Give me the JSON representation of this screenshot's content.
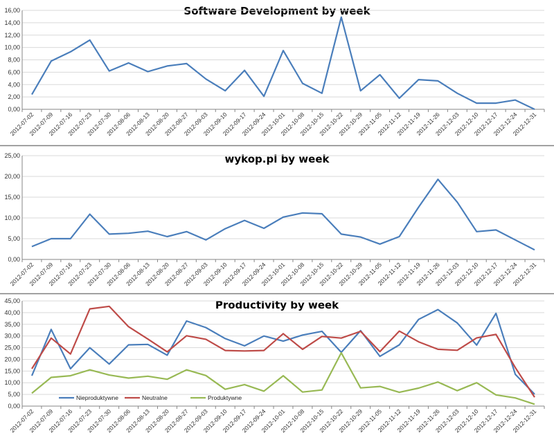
{
  "colors": {
    "blue": "#4a7ebb",
    "red": "#be4b48",
    "green": "#98b954",
    "grid": "#d9d9d9",
    "axis": "#868686",
    "separator": "#808080"
  },
  "chart_data": [
    {
      "type": "line",
      "title": "Software Development by week",
      "x": [
        "2012-07-02",
        "2012-07-09",
        "2012-07-16",
        "2012-07-23",
        "2012-07-30",
        "2012-08-06",
        "2012-08-13",
        "2012-08-20",
        "2012-08-27",
        "2012-09-03",
        "2012-09-10",
        "2012-09-17",
        "2012-09-24",
        "2012-10-01",
        "2012-10-08",
        "2012-10-15",
        "2012-10-22",
        "2012-10-29",
        "2012-11-05",
        "2012-11-12",
        "2012-11-19",
        "2012-11-26",
        "2012-12-03",
        "2012-12-10",
        "2012-12-17",
        "2012-12-24",
        "2012-12-31"
      ],
      "yticks": [
        "0,00",
        "2,00",
        "4,00",
        "6,00",
        "8,00",
        "10,00",
        "12,00",
        "14,00",
        "16,00"
      ],
      "ylim": [
        0,
        16
      ],
      "grid": true,
      "series": [
        {
          "color": "#4a7ebb",
          "values": [
            2.4,
            7.8,
            9.3,
            11.2,
            6.2,
            7.5,
            6.1,
            7.0,
            7.4,
            4.9,
            3.0,
            6.3,
            2.1,
            9.5,
            4.2,
            2.6,
            14.9,
            3.0,
            5.6,
            1.8,
            4.8,
            4.6,
            2.6,
            1.0,
            1.0,
            1.5,
            0.0
          ]
        }
      ]
    },
    {
      "type": "line",
      "title": "wykop.pl by week",
      "x": [
        "2012-07-02",
        "2012-07-09",
        "2012-07-16",
        "2012-07-23",
        "2012-07-30",
        "2012-08-06",
        "2012-08-13",
        "2012-08-20",
        "2012-08-27",
        "2012-09-03",
        "2012-09-10",
        "2012-09-17",
        "2012-09-24",
        "2012-10-01",
        "2012-10-08",
        "2012-10-15",
        "2012-10-22",
        "2012-10-29",
        "2012-11-05",
        "2012-11-12",
        "2012-11-19",
        "2012-11-26",
        "2012-12-03",
        "2012-12-10",
        "2012-12-17",
        "2012-12-24",
        "2012-12-31"
      ],
      "yticks": [
        "0,00",
        "5,00",
        "10,00",
        "15,00",
        "20,00",
        "25,00"
      ],
      "ylim": [
        0,
        25
      ],
      "grid": true,
      "series": [
        {
          "color": "#4a7ebb",
          "values": [
            3.1,
            5.0,
            5.0,
            10.9,
            6.1,
            6.3,
            6.8,
            5.5,
            6.7,
            4.7,
            7.4,
            9.4,
            7.5,
            10.2,
            11.2,
            11.0,
            6.1,
            5.4,
            3.7,
            5.5,
            12.6,
            19.3,
            13.8,
            6.7,
            7.1,
            4.7,
            2.3
          ]
        }
      ]
    },
    {
      "type": "line",
      "title": "Productivity by week",
      "x": [
        "2012-07-02",
        "2012-07-09",
        "2012-07-16",
        "2012-07-23",
        "2012-07-30",
        "2012-08-06",
        "2012-08-13",
        "2012-08-20",
        "2012-08-27",
        "2012-09-03",
        "2012-09-10",
        "2012-09-17",
        "2012-09-24",
        "2012-10-01",
        "2012-10-08",
        "2012-10-15",
        "2012-10-22",
        "2012-10-29",
        "2012-11-05",
        "2012-11-12",
        "2012-11-19",
        "2012-11-26",
        "2012-12-03",
        "2012-12-10",
        "2012-12-17",
        "2012-12-24",
        "2012-12-31"
      ],
      "yticks": [
        "0,00",
        "5,00",
        "10,00",
        "15,00",
        "20,00",
        "25,00",
        "30,00",
        "35,00",
        "40,00",
        "45,00"
      ],
      "ylim": [
        0,
        45
      ],
      "grid": true,
      "legend": "bottom-left",
      "series": [
        {
          "name": "Nieproduktywne",
          "color": "#4a7ebb",
          "values": [
            13.0,
            32.8,
            16.0,
            25.0,
            18.0,
            26.2,
            26.4,
            21.8,
            36.4,
            33.6,
            28.9,
            25.8,
            30.0,
            27.8,
            30.4,
            32.0,
            23.0,
            32.3,
            21.3,
            26.2,
            37.1,
            41.3,
            35.6,
            26.1,
            39.7,
            13.6,
            5.1
          ]
        },
        {
          "name": "Neutralne",
          "color": "#be4b48",
          "values": [
            16.0,
            29.1,
            22.3,
            41.6,
            42.7,
            34.0,
            28.7,
            23.2,
            30.1,
            28.6,
            23.8,
            23.6,
            23.8,
            31.0,
            24.3,
            29.8,
            29.1,
            32.0,
            23.3,
            32.1,
            27.5,
            24.3,
            23.9,
            29.2,
            30.7,
            16.5,
            3.8
          ]
        },
        {
          "name": "Produktywne",
          "color": "#98b954",
          "values": [
            5.5,
            12.3,
            13.0,
            15.5,
            13.3,
            12.0,
            12.8,
            11.5,
            15.5,
            13.1,
            7.2,
            9.2,
            6.4,
            13.0,
            6.0,
            6.9,
            22.8,
            7.8,
            8.4,
            5.9,
            7.7,
            10.3,
            6.6,
            10.0,
            4.8,
            3.5,
            0.8
          ]
        }
      ]
    }
  ]
}
